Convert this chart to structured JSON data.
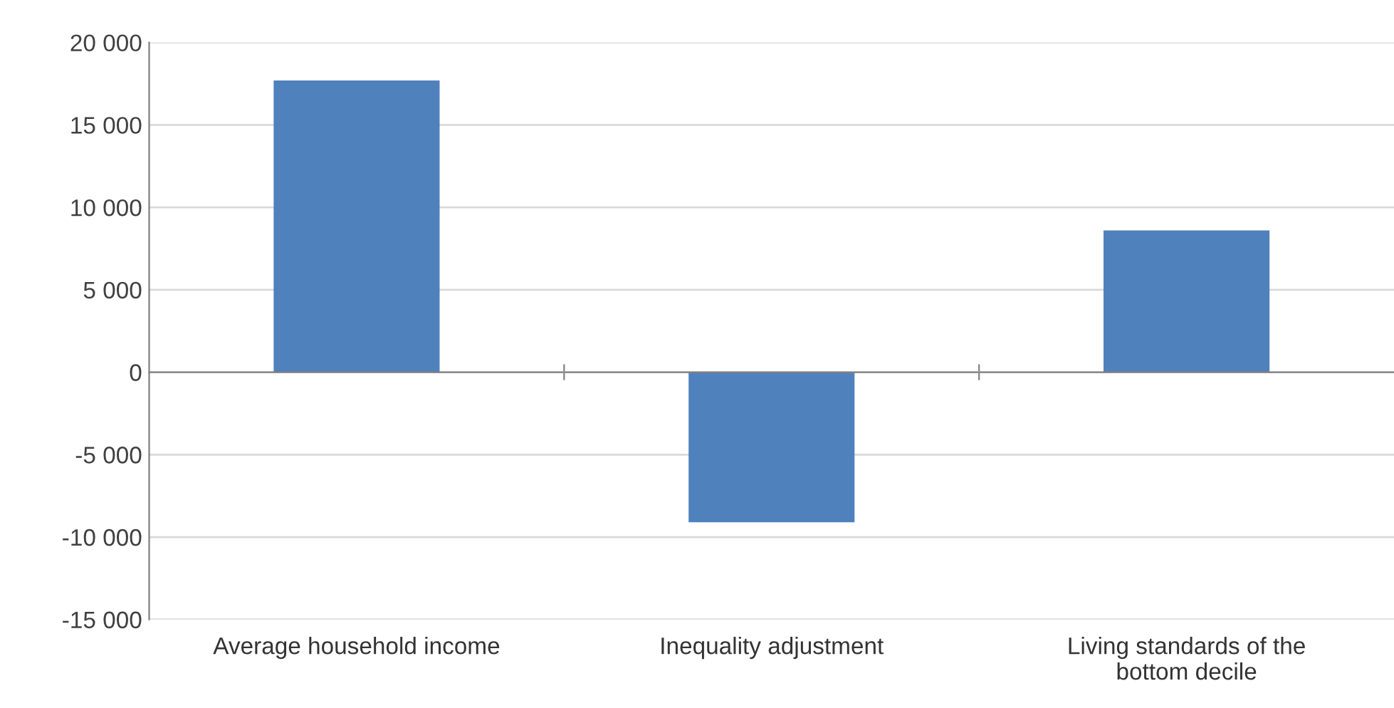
{
  "chart_data": {
    "type": "bar",
    "categories": [
      "Average household income",
      "Inequality adjustment",
      "Living standards of the\nbottom decile"
    ],
    "values": [
      17700,
      -9100,
      8600
    ],
    "color": "#4f81bd",
    "ylim": [
      -15000,
      20000
    ],
    "yticks": [
      {
        "value": -15000,
        "label": "-15 000"
      },
      {
        "value": -10000,
        "label": "-10 000"
      },
      {
        "value": -5000,
        "label": "-5 000"
      },
      0,
      {
        "value": 5000,
        "label": "5 000"
      },
      {
        "value": 10000,
        "label": "10 000"
      },
      {
        "value": 15000,
        "label": "15 000"
      },
      {
        "value": 20000,
        "label": "20 000"
      }
    ],
    "grid": "y"
  }
}
